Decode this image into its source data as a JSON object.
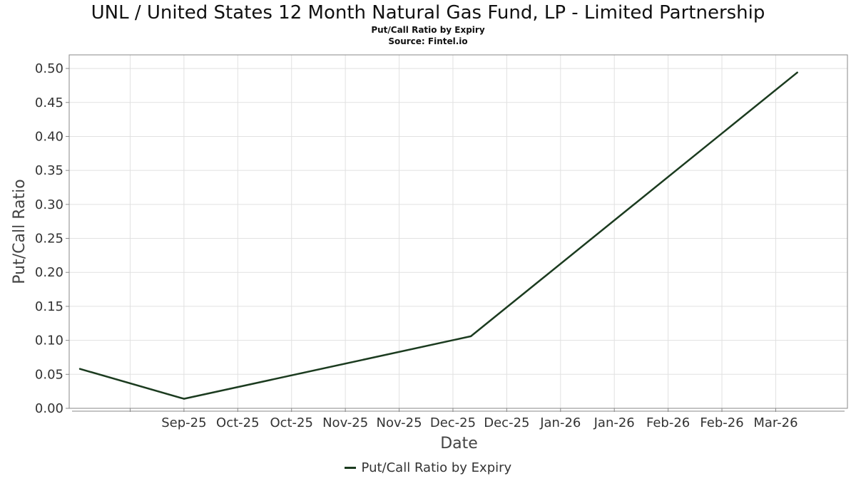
{
  "title": "UNL / United States 12 Month Natural Gas Fund, LP - Limited Partnership",
  "subtitle": "Put/Call Ratio by Expiry",
  "source": "Source: Fintel.io",
  "colors": {
    "line": "#1b3b1f",
    "grid": "#e1e1e1",
    "frame": "#888888"
  },
  "chart_data": {
    "type": "line",
    "xlabel": "Date",
    "ylabel": "Put/Call Ratio",
    "ylim": [
      0,
      0.52
    ],
    "yticks": [
      0.0,
      0.05,
      0.1,
      0.15,
      0.2,
      0.25,
      0.3,
      0.35,
      0.4,
      0.45,
      0.5
    ],
    "ytick_labels": [
      "0.00",
      "0.05",
      "0.10",
      "0.15",
      "0.20",
      "0.25",
      "0.30",
      "0.35",
      "0.40",
      "0.45",
      "0.50"
    ],
    "xlim": [
      "2025-08-29",
      "2026-04-03"
    ],
    "xticks": [
      "2025-09-15",
      "2025-09-30",
      "2025-10-15",
      "2025-10-30",
      "2025-11-14",
      "2025-11-29",
      "2025-12-14",
      "2025-12-29",
      "2026-01-13",
      "2026-01-28",
      "2026-02-12",
      "2026-02-27",
      "2026-03-14"
    ],
    "xtick_labels": [
      "",
      "Sep-25",
      "Oct-25",
      "Oct-25",
      "Nov-25",
      "Nov-25",
      "Dec-25",
      "Dec-25",
      "Jan-26",
      "Jan-26",
      "Feb-26",
      "Feb-26",
      "Mar-26"
    ],
    "grid": true,
    "legend_position": "bottom-center",
    "series": [
      {
        "name": "Put/Call Ratio by Expiry",
        "x": [
          "2025-09-01",
          "2025-09-30",
          "2025-12-19",
          "2026-03-20"
        ],
        "values": [
          0.058,
          0.014,
          0.106,
          0.494
        ]
      }
    ]
  }
}
